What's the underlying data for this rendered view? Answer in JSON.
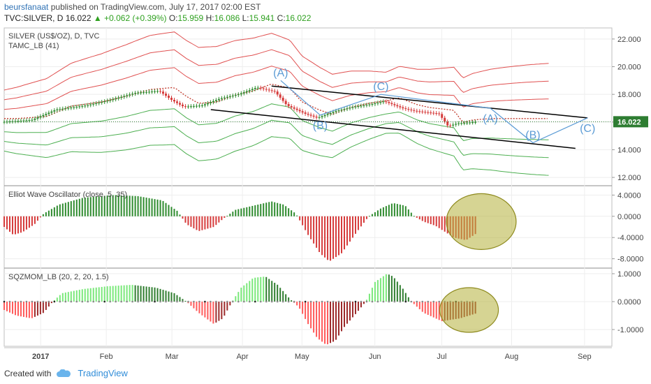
{
  "header": {
    "author": "beursfanaat",
    "published": "published on TradingView.com, July 17, 2017 02:00 EST",
    "symbol": "TVC:SILVER, D",
    "last": "16.022",
    "change": "+0.062 (+0.39%)",
    "open_label": "O:",
    "open": "15.959",
    "high_label": "H:",
    "high": "16.086",
    "low_label": "L:",
    "low": "15.941",
    "close_label": "C:",
    "close": "16.022"
  },
  "footer": {
    "created_with": "Created with",
    "brand": "TradingView"
  },
  "colors": {
    "up": "#2e8b2e",
    "down": "#d63b3b",
    "red_band": "#e05050",
    "green_band": "#4caf50",
    "wave": "#5b9bd5",
    "circle_fill": "#b5b03a",
    "price_label_bg": "#2e7d32"
  },
  "chart_data": [
    {
      "type": "candlestick",
      "title": "SILVER (US$/OZ), D, TVC",
      "indicator": "TAMC_LB (41)",
      "ylim": [
        11.5,
        22.8
      ],
      "y_ticks": [
        "22.000",
        "20.000",
        "18.000",
        "16.000",
        "14.000",
        "12.000"
      ],
      "y_tick_values": [
        22,
        20,
        18,
        16,
        14,
        12
      ],
      "last_price_label": "16.022",
      "x_ticks": [
        "2017",
        "Feb",
        "Mar",
        "Apr",
        "May",
        "Jun",
        "Jul",
        "Aug",
        "Sep"
      ],
      "x_tick_pos": [
        0.06,
        0.168,
        0.276,
        0.392,
        0.49,
        0.61,
        0.72,
        0.835,
        0.955
      ],
      "price_path": [
        [
          0.0,
          16.0
        ],
        [
          0.05,
          16.15
        ],
        [
          0.09,
          16.9
        ],
        [
          0.14,
          17.2
        ],
        [
          0.18,
          17.6
        ],
        [
          0.22,
          18.1
        ],
        [
          0.26,
          18.25
        ],
        [
          0.28,
          17.6
        ],
        [
          0.3,
          17.1
        ],
        [
          0.33,
          17.2
        ],
        [
          0.36,
          17.7
        ],
        [
          0.39,
          18.0
        ],
        [
          0.42,
          18.5
        ],
        [
          0.45,
          18.2
        ],
        [
          0.47,
          17.2
        ],
        [
          0.5,
          16.6
        ],
        [
          0.52,
          16.3
        ],
        [
          0.55,
          16.8
        ],
        [
          0.58,
          17.1
        ],
        [
          0.61,
          17.3
        ],
        [
          0.63,
          17.5
        ],
        [
          0.66,
          17.0
        ],
        [
          0.68,
          16.8
        ],
        [
          0.7,
          16.7
        ],
        [
          0.72,
          16.6
        ],
        [
          0.735,
          15.7
        ],
        [
          0.75,
          15.9
        ],
        [
          0.78,
          16.0
        ]
      ],
      "wave_labels": [
        "(A)",
        "(B)",
        "(C)",
        "(A)",
        "(B)",
        "(C)"
      ],
      "wave_path": [
        [
          0.455,
          19.0
        ],
        [
          0.52,
          16.5
        ],
        [
          0.62,
          18.0
        ],
        [
          0.8,
          17.0
        ],
        [
          0.87,
          14.5
        ],
        [
          0.96,
          16.3
        ]
      ],
      "channel_upper": [
        [
          0.44,
          18.6
        ],
        [
          0.96,
          16.3
        ]
      ],
      "channel_lower": [
        [
          0.34,
          16.9
        ],
        [
          0.94,
          14.1
        ]
      ]
    },
    {
      "type": "bar",
      "title": "Elliot Wave Oscillator (close, 5, 35)",
      "ylim": [
        -9.5,
        5.5
      ],
      "y_ticks": [
        "4.0000",
        "0.0000",
        "-4.0000",
        "-8.0000"
      ],
      "y_tick_values": [
        4,
        0,
        -4,
        -8
      ],
      "anchors": [
        [
          0.0,
          -2.0
        ],
        [
          0.015,
          -3.5
        ],
        [
          0.03,
          -3.0
        ],
        [
          0.05,
          -1.5
        ],
        [
          0.065,
          0.5
        ],
        [
          0.09,
          2.2
        ],
        [
          0.13,
          3.5
        ],
        [
          0.18,
          4.0
        ],
        [
          0.22,
          3.8
        ],
        [
          0.26,
          3.0
        ],
        [
          0.285,
          1.0
        ],
        [
          0.3,
          -1.5
        ],
        [
          0.32,
          -2.8
        ],
        [
          0.345,
          -2.0
        ],
        [
          0.36,
          -0.5
        ],
        [
          0.38,
          1.2
        ],
        [
          0.41,
          2.0
        ],
        [
          0.44,
          2.8
        ],
        [
          0.46,
          2.2
        ],
        [
          0.48,
          0.5
        ],
        [
          0.5,
          -3.5
        ],
        [
          0.52,
          -7.0
        ],
        [
          0.535,
          -8.5
        ],
        [
          0.555,
          -7.0
        ],
        [
          0.58,
          -3.0
        ],
        [
          0.6,
          0.0
        ],
        [
          0.62,
          1.5
        ],
        [
          0.64,
          2.5
        ],
        [
          0.66,
          2.0
        ],
        [
          0.675,
          0.0
        ],
        [
          0.69,
          -1.0
        ],
        [
          0.71,
          -1.8
        ],
        [
          0.74,
          -4.0
        ],
        [
          0.76,
          -4.5
        ],
        [
          0.78,
          -3.0
        ]
      ],
      "highlight_circle": {
        "x": 0.785,
        "y": -1.0
      }
    },
    {
      "type": "bar",
      "title": "SQZMOM_LB (20, 2, 20, 1.5)",
      "ylim": [
        -1.6,
        1.15
      ],
      "y_ticks": [
        "1.0000",
        "0.0000",
        "-1.0000"
      ],
      "y_tick_values": [
        1,
        0,
        -1
      ],
      "anchors": [
        [
          0.0,
          -0.3
        ],
        [
          0.02,
          -0.5
        ],
        [
          0.045,
          -0.6
        ],
        [
          0.065,
          -0.4
        ],
        [
          0.08,
          0.0
        ],
        [
          0.095,
          0.3
        ],
        [
          0.13,
          0.45
        ],
        [
          0.17,
          0.55
        ],
        [
          0.21,
          0.6
        ],
        [
          0.25,
          0.5
        ],
        [
          0.28,
          0.3
        ],
        [
          0.3,
          0.0
        ],
        [
          0.32,
          -0.4
        ],
        [
          0.345,
          -0.8
        ],
        [
          0.36,
          -0.6
        ],
        [
          0.375,
          0.0
        ],
        [
          0.39,
          0.5
        ],
        [
          0.41,
          0.85
        ],
        [
          0.43,
          0.9
        ],
        [
          0.45,
          0.6
        ],
        [
          0.47,
          0.1
        ],
        [
          0.485,
          -0.2
        ],
        [
          0.5,
          -0.8
        ],
        [
          0.515,
          -1.3
        ],
        [
          0.53,
          -1.55
        ],
        [
          0.545,
          -1.4
        ],
        [
          0.56,
          -0.9
        ],
        [
          0.58,
          -0.4
        ],
        [
          0.595,
          0.0
        ],
        [
          0.61,
          0.7
        ],
        [
          0.63,
          1.0
        ],
        [
          0.64,
          0.9
        ],
        [
          0.655,
          0.5
        ],
        [
          0.67,
          0.0
        ],
        [
          0.69,
          -0.4
        ],
        [
          0.72,
          -0.7
        ],
        [
          0.75,
          -0.6
        ],
        [
          0.78,
          -0.4
        ]
      ],
      "highlight_circle": {
        "x": 0.765,
        "y": -0.3
      }
    }
  ]
}
